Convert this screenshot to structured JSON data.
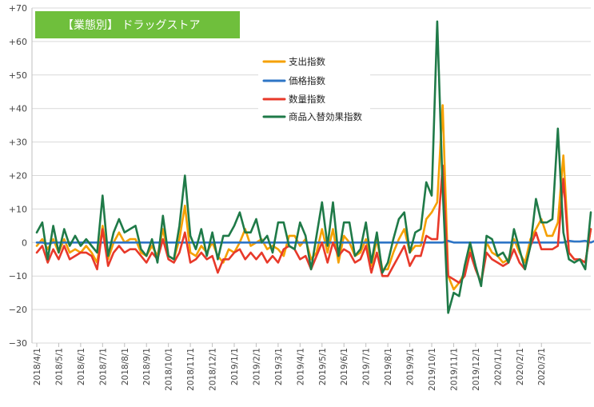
{
  "chart_data": {
    "type": "line",
    "title": "【業態別】 ドラッグストア",
    "ylim": [
      -30,
      70
    ],
    "yticks": [
      {
        "v": 70,
        "label": "+70"
      },
      {
        "v": 60,
        "label": "+60"
      },
      {
        "v": 50,
        "label": "+50"
      },
      {
        "v": 40,
        "label": "+40"
      },
      {
        "v": 30,
        "label": "+30"
      },
      {
        "v": 20,
        "label": "+20"
      },
      {
        "v": 10,
        "label": "+10"
      },
      {
        "v": 0,
        "label": "0"
      },
      {
        "v": -10,
        "label": "−10"
      },
      {
        "v": -20,
        "label": "−20"
      },
      {
        "v": -30,
        "label": "−30"
      }
    ],
    "xticks": [
      {
        "i": 0,
        "label": "2018/4/1"
      },
      {
        "i": 4,
        "label": "2018/5/1"
      },
      {
        "i": 8,
        "label": "2018/6/1"
      },
      {
        "i": 12,
        "label": "2018/7/1"
      },
      {
        "i": 16,
        "label": "2018/8/1"
      },
      {
        "i": 20,
        "label": "2018/9/1"
      },
      {
        "i": 24,
        "label": "2018/10/1"
      },
      {
        "i": 28,
        "label": "2018/11/1"
      },
      {
        "i": 32,
        "label": "2018/12/1"
      },
      {
        "i": 36,
        "label": "2019/1/1"
      },
      {
        "i": 40,
        "label": "2019/2/1"
      },
      {
        "i": 44,
        "label": "2019/3/1"
      },
      {
        "i": 48,
        "label": "2019/4/1"
      },
      {
        "i": 52,
        "label": "2019/5/1"
      },
      {
        "i": 56,
        "label": "2019/6/1"
      },
      {
        "i": 60,
        "label": "2019/7/1"
      },
      {
        "i": 64,
        "label": "2019/8/1"
      },
      {
        "i": 68,
        "label": "2019/9/1"
      },
      {
        "i": 72,
        "label": "2019/10/1"
      },
      {
        "i": 76,
        "label": "2019/11/1"
      },
      {
        "i": 80,
        "label": "2019/12/1"
      },
      {
        "i": 84,
        "label": "2020/1/1"
      },
      {
        "i": 88,
        "label": "2020/2/1"
      },
      {
        "i": 92,
        "label": "2020/3/1"
      }
    ],
    "legend_position": "upper-center",
    "series": [
      {
        "name": "支出指数",
        "color": "#f5a000",
        "values": [
          -1,
          1,
          -2,
          1,
          -3,
          1,
          -3,
          -2,
          -3,
          -1,
          -3,
          -6,
          5,
          -5,
          0,
          3,
          0,
          1,
          1,
          -3,
          -4,
          -1,
          -4,
          4,
          -4,
          -5,
          1,
          11,
          -3,
          -4,
          -1,
          -3,
          0,
          -4,
          -6,
          -2,
          -3,
          0,
          4,
          -1,
          0,
          1,
          -2,
          -1,
          -2,
          -4,
          2,
          2,
          -1,
          1,
          -5,
          -3,
          4,
          -3,
          4,
          -6,
          2,
          0,
          -4,
          -3,
          1,
          -7,
          1,
          -8,
          -8,
          -3,
          1,
          4,
          -3,
          -1,
          -1,
          7,
          9,
          12,
          41,
          -10,
          -14,
          -12,
          -9,
          -1,
          -8,
          -12,
          0,
          -3,
          -4,
          -6,
          -5,
          1,
          -3,
          -6,
          1,
          4,
          7,
          2,
          2,
          6,
          26,
          -3,
          -5,
          -5,
          -6,
          4
        ]
      },
      {
        "name": "価格指数",
        "color": "#2e75c6",
        "values": [
          0,
          0,
          -0.3,
          0,
          0,
          0,
          0,
          0,
          0,
          0,
          0,
          0,
          0,
          0,
          0,
          0,
          0,
          0,
          0,
          0,
          0,
          0,
          0,
          0,
          0,
          0,
          0,
          0,
          0,
          0,
          0,
          0,
          0,
          0,
          0,
          0,
          0,
          0,
          0,
          0,
          0,
          0,
          0,
          0,
          0,
          0,
          0,
          0,
          0,
          0,
          0,
          0,
          0,
          0,
          0,
          0,
          0,
          0,
          0,
          0,
          0,
          0,
          0,
          0,
          0,
          0,
          0,
          0,
          0,
          0,
          0,
          0,
          0,
          0,
          0,
          0.5,
          0,
          0,
          0,
          0,
          0,
          0,
          0,
          0,
          0,
          0,
          0,
          0,
          0,
          0,
          0,
          0,
          0,
          0,
          0,
          0,
          0,
          0.5,
          0.3,
          0.3,
          0.5,
          0,
          0.7
        ]
      },
      {
        "name": "数量指数",
        "color": "#e8392a",
        "values": [
          -3,
          -1,
          -6,
          -2,
          -5,
          -1,
          -5,
          -4,
          -3,
          -3,
          -4,
          -8,
          4,
          -7,
          -3,
          -1,
          -3,
          -2,
          -2,
          -4,
          -6,
          -3,
          -5,
          1,
          -5,
          -6,
          -3,
          3,
          -6,
          -5,
          -3,
          -5,
          -4,
          -9,
          -5,
          -5,
          -3,
          -2,
          -5,
          -3,
          -5,
          -3,
          -6,
          -4,
          -6,
          -2,
          -1,
          -2,
          -5,
          -4,
          -8,
          -4,
          0,
          -6,
          0,
          -4,
          -2,
          -3,
          -6,
          -5,
          -1,
          -9,
          -3,
          -10,
          -10,
          -7,
          -4,
          -1,
          -7,
          -4,
          -4,
          2,
          1,
          1,
          23,
          -10,
          -11,
          -12,
          -10,
          -3,
          -8,
          -12,
          -3,
          -5,
          -6,
          -7,
          -6,
          -2,
          -6,
          -8,
          -1,
          3,
          -2,
          -2,
          -2,
          -1,
          19,
          -3,
          -5,
          -5,
          -6,
          4
        ]
      },
      {
        "name": "商品入替効果指数",
        "color": "#1f7a48",
        "values": [
          3,
          6,
          -5,
          5,
          -3,
          4,
          -1,
          2,
          -1,
          1,
          -1,
          -3,
          14,
          -4,
          3,
          7,
          3,
          4,
          5,
          -2,
          -4,
          1,
          -6,
          8,
          -4,
          -5,
          5,
          20,
          2,
          -2,
          4,
          -4,
          3,
          -5,
          2,
          2,
          5,
          9,
          3,
          3,
          7,
          0,
          2,
          -3,
          6,
          6,
          -1,
          -2,
          6,
          2,
          -8,
          2,
          12,
          -1,
          12,
          -4,
          6,
          6,
          -4,
          -2,
          6,
          -6,
          3,
          -9,
          -6,
          1,
          7,
          9,
          -3,
          3,
          4,
          18,
          14,
          66,
          16,
          -21,
          -15,
          -16,
          -7,
          0,
          -7,
          -13,
          2,
          1,
          -4,
          -3,
          -6,
          4,
          -2,
          -8,
          -1,
          13,
          6,
          6,
          7,
          34,
          3,
          -5,
          -6,
          -5,
          -8,
          9
        ]
      }
    ]
  }
}
